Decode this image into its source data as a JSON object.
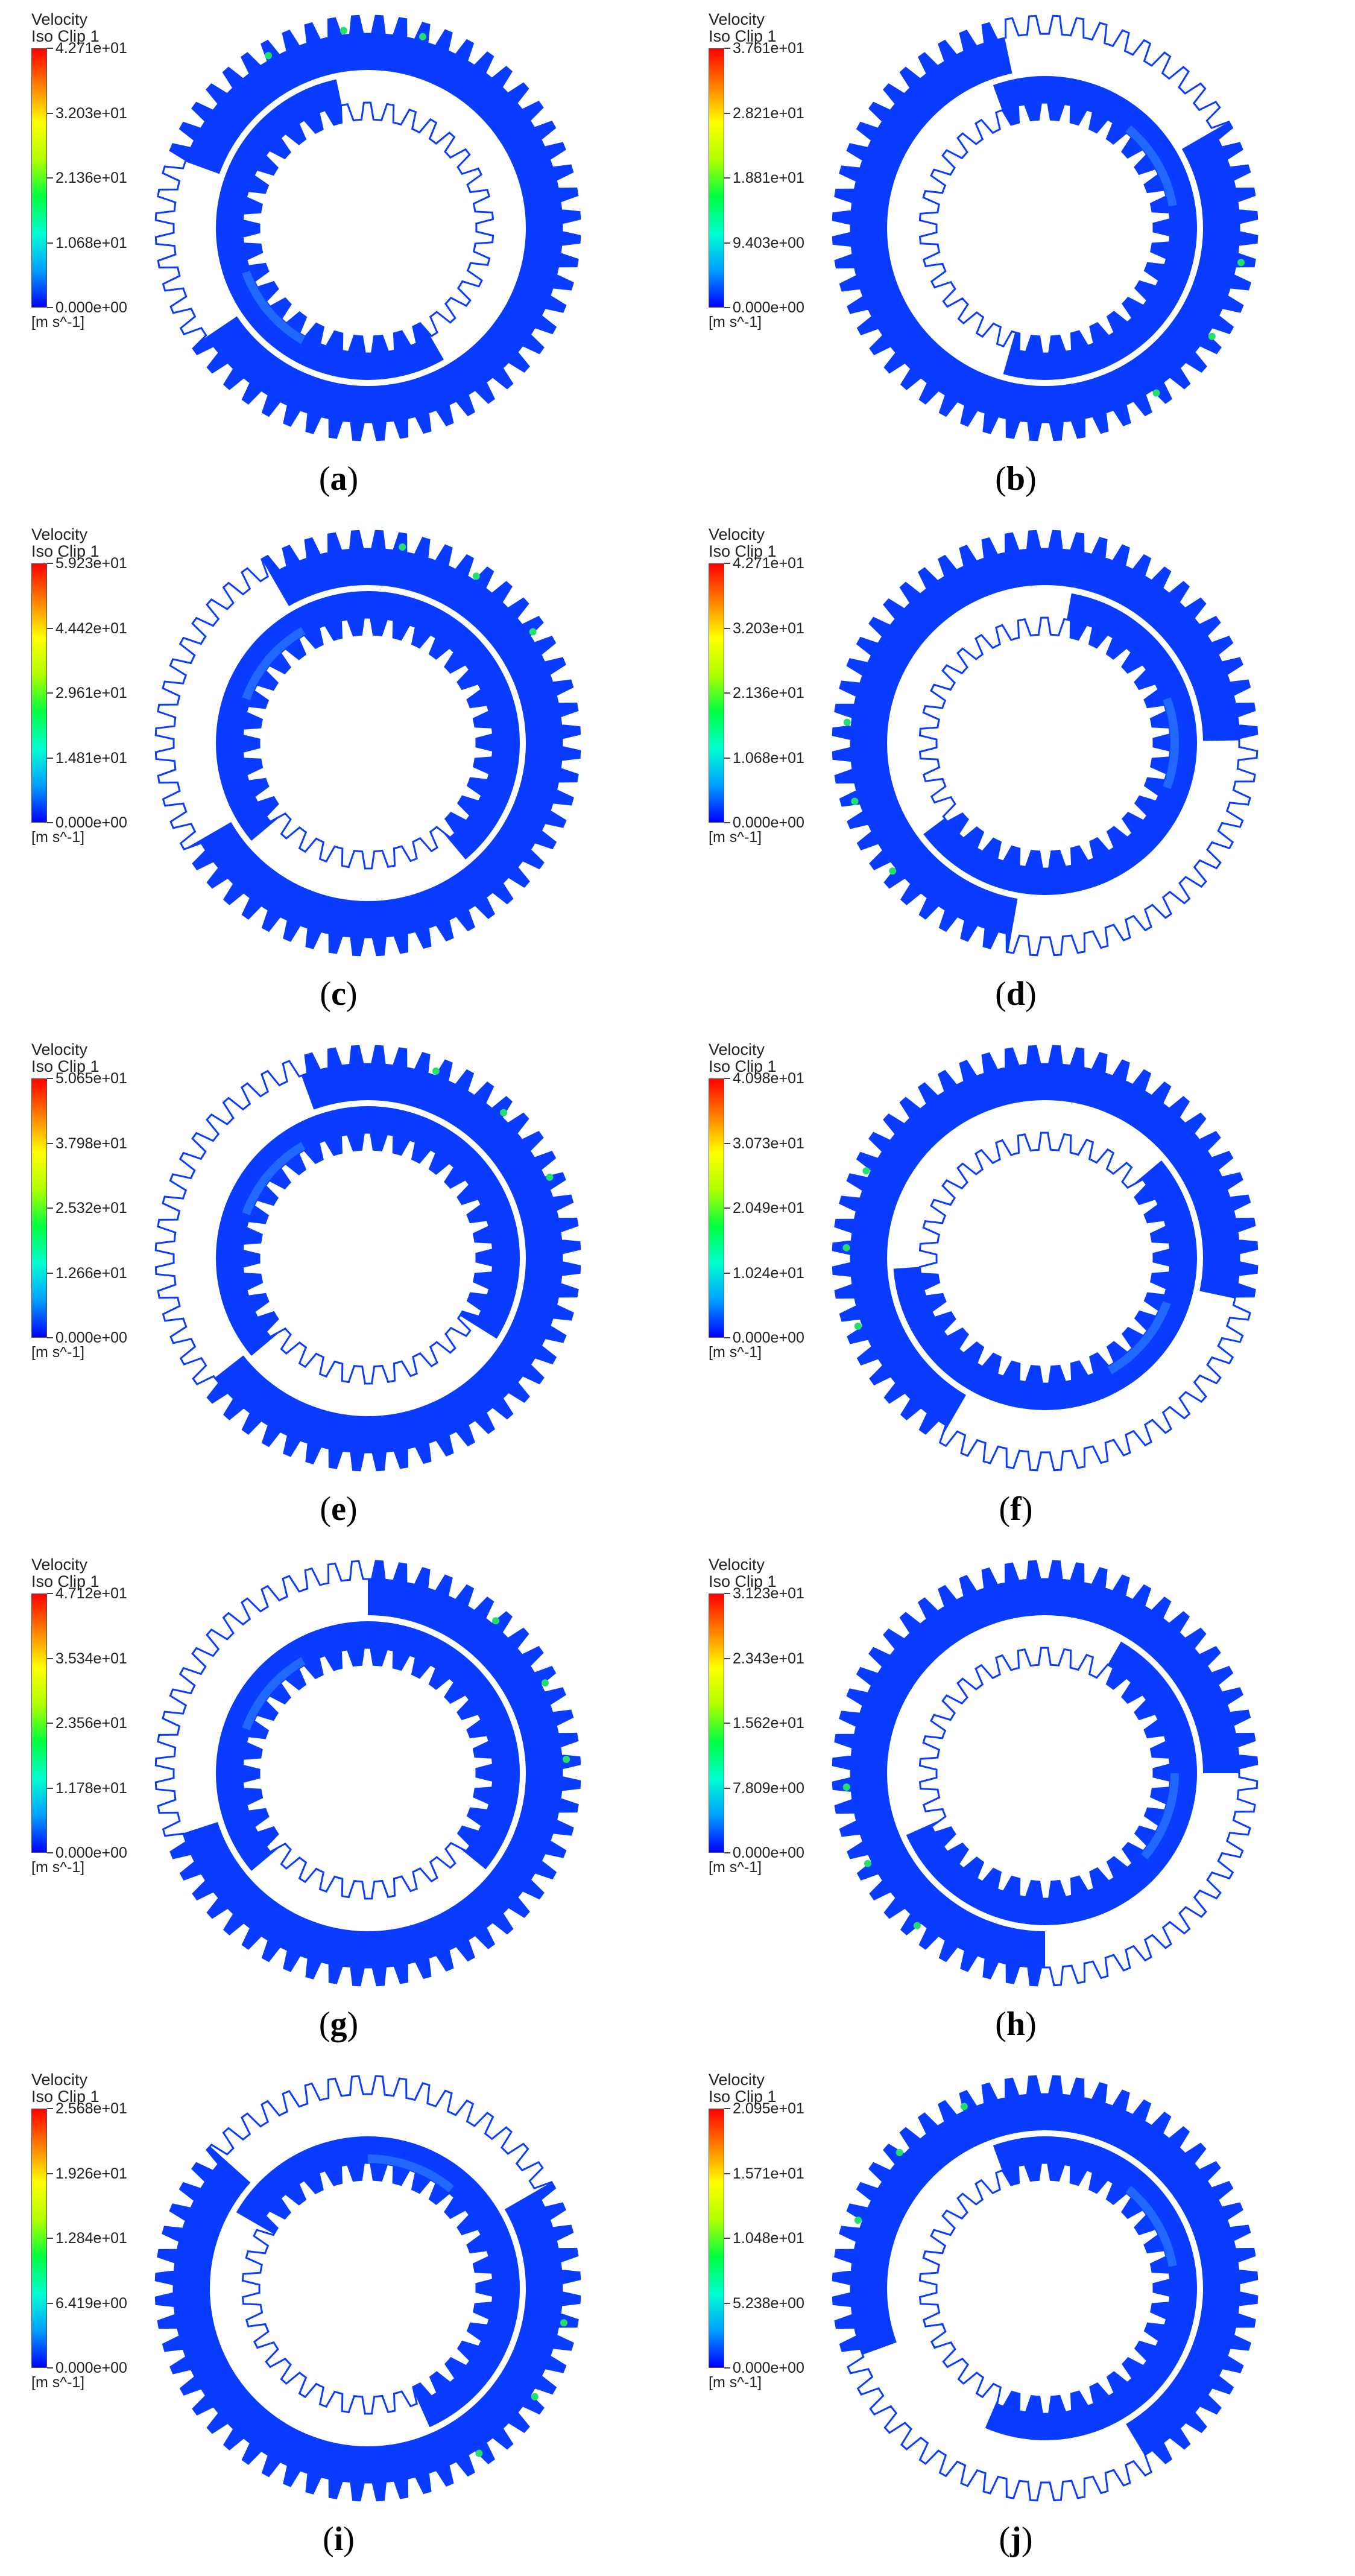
{
  "colorbar": {
    "stops": [
      "#0000ff",
      "#00a0ff",
      "#00ffd0",
      "#00ff40",
      "#b0ff00",
      "#ffff00",
      "#ff8000",
      "#ff0000"
    ]
  },
  "colors": {
    "fluid": "#0a3cff",
    "fluid_light": "#2a7bff",
    "hot": "#22e06a"
  },
  "panels": [
    {
      "title1": "Velocity",
      "title2": "Iso Clip 1",
      "labels": [
        "4.271e+01",
        "3.203e+01",
        "2.136e+01",
        "1.068e+01",
        "0.000e+00"
      ],
      "unit": "[m s^-1]",
      "caption": "a",
      "outer_fill": 0.85,
      "outer_start_deg": 200,
      "inner_fill": 0.55,
      "inner_start_deg": 60
    },
    {
      "title1": "Velocity",
      "title2": "Iso Clip 1",
      "labels": [
        "3.761e+01",
        "2.821e+01",
        "1.881e+01",
        "9.403e+00",
        "0.000e+00"
      ],
      "unit": "[m s^-1]",
      "caption": "b",
      "outer_fill": 0.8,
      "outer_start_deg": 330,
      "inner_fill": 0.6,
      "inner_start_deg": 250
    },
    {
      "title1": "Velocity",
      "title2": "Iso Clip 1",
      "labels": [
        "5.923e+01",
        "4.442e+01",
        "2.961e+01",
        "1.481e+01",
        "0.000e+00"
      ],
      "unit": "[m s^-1]",
      "caption": "c",
      "outer_fill": 0.75,
      "outer_start_deg": 240,
      "inner_fill": 0.75,
      "inner_start_deg": 140
    },
    {
      "title1": "Velocity",
      "title2": "Iso Clip 1",
      "labels": [
        "4.271e+01",
        "3.203e+01",
        "2.136e+01",
        "1.068e+01",
        "0.000e+00"
      ],
      "unit": "[m s^-1]",
      "caption": "d",
      "outer_fill": 0.72,
      "outer_start_deg": 100,
      "inner_fill": 0.62,
      "inner_start_deg": 280
    },
    {
      "title1": "Velocity",
      "title2": "Iso Clip 1",
      "labels": [
        "5.065e+01",
        "3.798e+01",
        "2.532e+01",
        "1.266e+01",
        "0.000e+00"
      ],
      "unit": "[m s^-1]",
      "caption": "e",
      "outer_fill": 0.7,
      "outer_start_deg": 250,
      "inner_fill": 0.7,
      "inner_start_deg": 140
    },
    {
      "title1": "Velocity",
      "title2": "Iso Clip 1",
      "labels": [
        "4.098e+01",
        "3.073e+01",
        "2.049e+01",
        "1.024e+01",
        "0.000e+00"
      ],
      "unit": "[m s^-1]",
      "caption": "f",
      "outer_fill": 0.7,
      "outer_start_deg": 120,
      "inner_fill": 0.6,
      "inner_start_deg": 320
    },
    {
      "title1": "Velocity",
      "title2": "Iso Clip 1",
      "labels": [
        "4.712e+01",
        "3.534e+01",
        "2.356e+01",
        "1.178e+01",
        "0.000e+00"
      ],
      "unit": "[m s^-1]",
      "caption": "g",
      "outer_fill": 0.7,
      "outer_start_deg": 270,
      "inner_fill": 0.72,
      "inner_start_deg": 140
    },
    {
      "title1": "Velocity",
      "title2": "Iso Clip 1",
      "labels": [
        "3.123e+01",
        "2.343e+01",
        "1.562e+01",
        "7.809e+00",
        "0.000e+00"
      ],
      "unit": "[m s^-1]",
      "caption": "h",
      "outer_fill": 0.75,
      "outer_start_deg": 90,
      "inner_fill": 0.6,
      "inner_start_deg": 300
    },
    {
      "title1": "Velocity",
      "title2": "Iso Clip 1",
      "labels": [
        "2.568e+01",
        "1.926e+01",
        "1.284e+01",
        "6.419e+00",
        "0.000e+00"
      ],
      "unit": "[m s^-1]",
      "caption": "i",
      "outer_fill": 0.7,
      "outer_start_deg": 330,
      "inner_fill": 0.6,
      "inner_start_deg": 210
    },
    {
      "title1": "Velocity",
      "title2": "Iso Clip 1",
      "labels": [
        "2.095e+01",
        "1.571e+01",
        "1.048e+01",
        "5.238e+00",
        "0.000e+00"
      ],
      "unit": "[m s^-1]",
      "caption": "j",
      "outer_fill": 0.72,
      "outer_start_deg": 160,
      "inner_fill": 0.62,
      "inner_start_deg": 250
    }
  ]
}
